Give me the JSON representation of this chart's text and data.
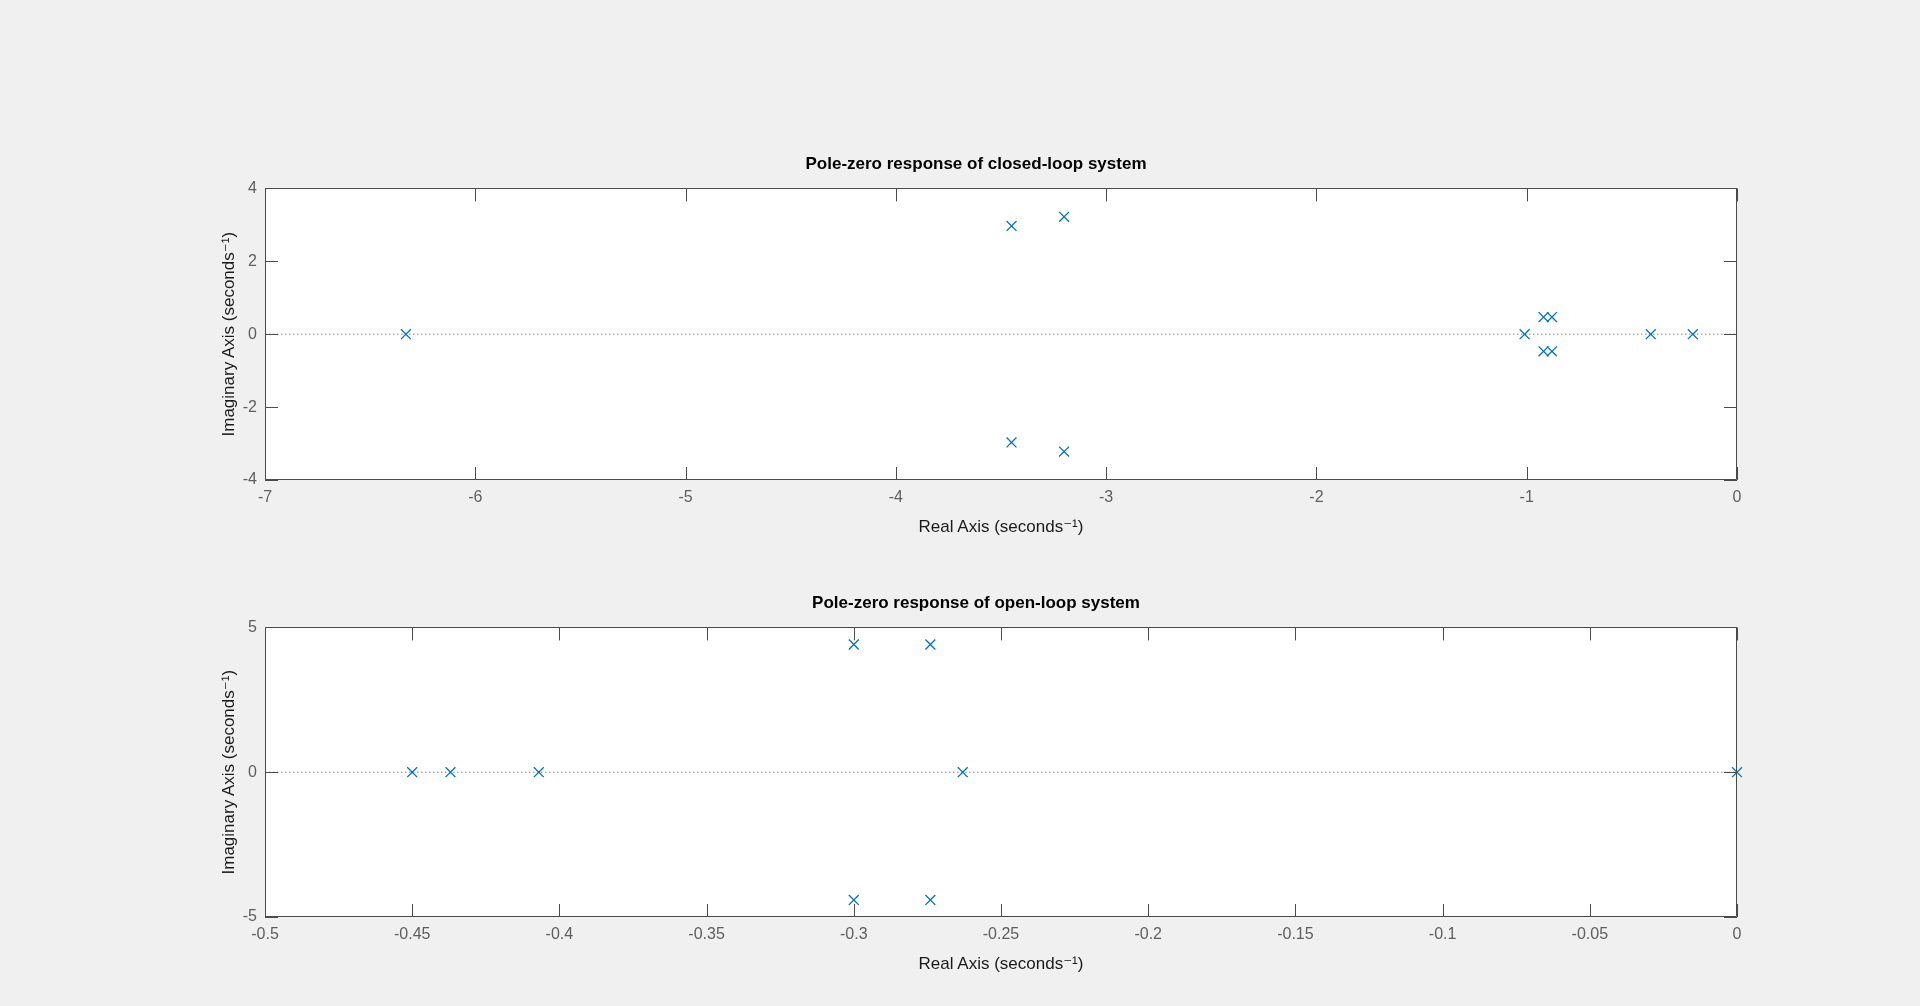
{
  "chart_data": [
    {
      "type": "scatter",
      "title": "Pole-zero response of closed-loop system",
      "xlabel": "Real Axis (seconds⁻¹)",
      "ylabel": "Imaginary Axis (seconds⁻¹)",
      "x": [
        -6.33,
        -3.45,
        -3.45,
        -3.2,
        -3.2,
        -1.01,
        -0.92,
        -0.92,
        -0.88,
        -0.88,
        -0.41,
        -0.21
      ],
      "values": [
        0,
        2.97,
        -2.97,
        3.22,
        -3.22,
        0,
        0.47,
        -0.47,
        0.47,
        -0.47,
        0,
        0
      ],
      "color": "#0072bd",
      "marker": "cross",
      "xlim": [
        -7,
        0
      ],
      "xticks": [
        -7,
        -6,
        -5,
        -4,
        -3,
        -2,
        -1,
        0
      ],
      "ylim": [
        -4,
        4
      ],
      "yticks": [
        -4,
        -2,
        0,
        2,
        4
      ],
      "ref_lines": [
        {
          "axis": "y",
          "value": 0,
          "color": "#808080",
          "line_style": "dotted"
        }
      ]
    },
    {
      "type": "scatter",
      "title": "Pole-zero response of open-loop system",
      "xlabel": "Real Axis (seconds⁻¹)",
      "ylabel": "Imaginary Axis (seconds⁻¹)",
      "x": [
        -0.45,
        -0.437,
        -0.407,
        -0.3,
        -0.3,
        -0.274,
        -0.274,
        -0.263,
        0
      ],
      "values": [
        0,
        0,
        0,
        4.41,
        -4.41,
        4.41,
        -4.41,
        0,
        0
      ],
      "color": "#0072bd",
      "marker": "cross",
      "xlim": [
        -0.5,
        0
      ],
      "xticks": [
        -0.5,
        -0.45,
        -0.4,
        -0.35,
        -0.3,
        -0.25,
        -0.2,
        -0.15,
        -0.1,
        -0.05,
        0
      ],
      "ylim": [
        -5,
        5
      ],
      "yticks": [
        -5,
        0,
        5
      ],
      "ref_lines": [
        {
          "axis": "y",
          "value": 0,
          "color": "#808080",
          "line_style": "dotted"
        }
      ]
    }
  ]
}
